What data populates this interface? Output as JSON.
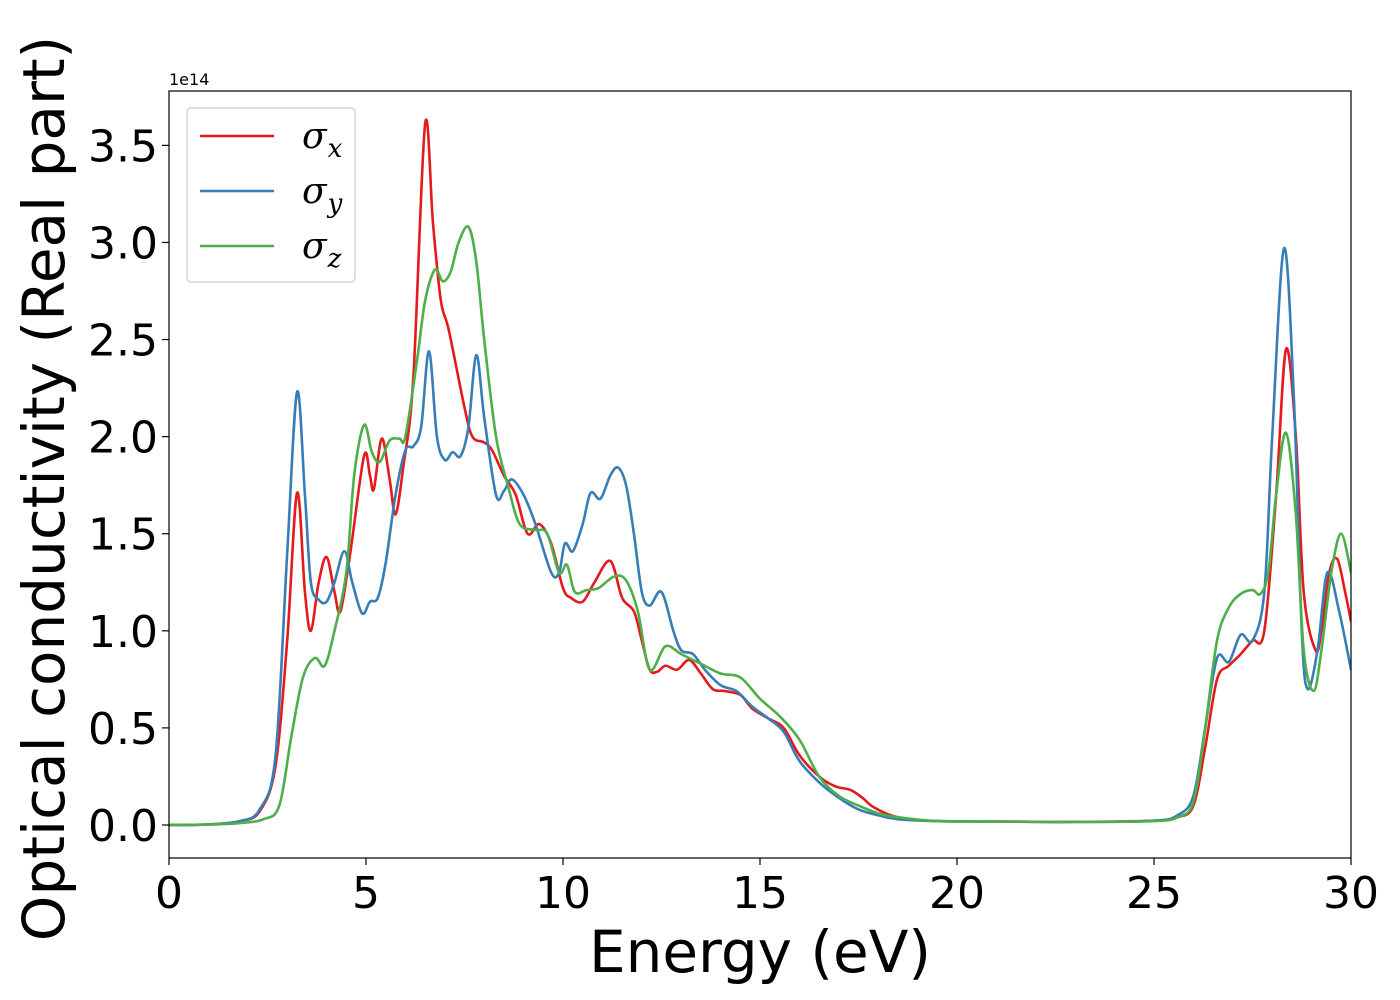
{
  "chart_data": {
    "type": "line",
    "xlabel": "Energy (eV)",
    "ylabel": "Optical conductivity (Real part)",
    "offset_text": "1e14",
    "scale": 100000000000000.0,
    "xlim": [
      0,
      30
    ],
    "ylim": [
      -0.17,
      3.78
    ],
    "xticks": [
      0,
      5,
      10,
      15,
      20,
      25,
      30
    ],
    "xtick_labels": [
      "0",
      "5",
      "10",
      "15",
      "20",
      "25",
      "30"
    ],
    "yticks": [
      0.0,
      0.5,
      1.0,
      1.5,
      2.0,
      2.5,
      3.0,
      3.5
    ],
    "ytick_labels": [
      "0.0",
      "0.5",
      "1.0",
      "1.5",
      "2.0",
      "2.5",
      "3.0",
      "3.5"
    ],
    "grid": false,
    "legend_position": "top-left",
    "series": [
      {
        "name": "σx",
        "symbol": "σ",
        "subscript": "x",
        "color": "#e41a1c",
        "points": [
          [
            0,
            0
          ],
          [
            1,
            0.003
          ],
          [
            1.8,
            0.02
          ],
          [
            2.3,
            0.07
          ],
          [
            2.7,
            0.3
          ],
          [
            3.0,
            0.95
          ],
          [
            3.25,
            1.71
          ],
          [
            3.45,
            1.2
          ],
          [
            3.6,
            1.0
          ],
          [
            3.8,
            1.25
          ],
          [
            4.0,
            1.38
          ],
          [
            4.2,
            1.2
          ],
          [
            4.35,
            1.1
          ],
          [
            4.6,
            1.4
          ],
          [
            4.95,
            1.9
          ],
          [
            5.1,
            1.8
          ],
          [
            5.2,
            1.73
          ],
          [
            5.4,
            1.99
          ],
          [
            5.6,
            1.78
          ],
          [
            5.75,
            1.6
          ],
          [
            5.95,
            1.85
          ],
          [
            6.2,
            2.3
          ],
          [
            6.5,
            3.61
          ],
          [
            6.7,
            3.1
          ],
          [
            6.9,
            2.7
          ],
          [
            7.1,
            2.55
          ],
          [
            7.5,
            2.15
          ],
          [
            7.7,
            2.0
          ],
          [
            8.0,
            1.97
          ],
          [
            8.2,
            1.93
          ],
          [
            8.5,
            1.8
          ],
          [
            8.8,
            1.7
          ],
          [
            9.1,
            1.5
          ],
          [
            9.4,
            1.55
          ],
          [
            9.7,
            1.45
          ],
          [
            10.0,
            1.22
          ],
          [
            10.2,
            1.17
          ],
          [
            10.5,
            1.15
          ],
          [
            10.8,
            1.25
          ],
          [
            11.2,
            1.36
          ],
          [
            11.5,
            1.17
          ],
          [
            11.8,
            1.1
          ],
          [
            12.0,
            0.95
          ],
          [
            12.2,
            0.8
          ],
          [
            12.4,
            0.79
          ],
          [
            12.6,
            0.82
          ],
          [
            12.9,
            0.8
          ],
          [
            13.2,
            0.85
          ],
          [
            13.5,
            0.78
          ],
          [
            13.8,
            0.7
          ],
          [
            14.1,
            0.69
          ],
          [
            14.5,
            0.67
          ],
          [
            14.8,
            0.6
          ],
          [
            15.2,
            0.55
          ],
          [
            15.6,
            0.5
          ],
          [
            16.0,
            0.36
          ],
          [
            16.5,
            0.25
          ],
          [
            16.9,
            0.2
          ],
          [
            17.3,
            0.18
          ],
          [
            17.6,
            0.14
          ],
          [
            17.9,
            0.09
          ],
          [
            18.5,
            0.04
          ],
          [
            19.5,
            0.02
          ],
          [
            21,
            0.018
          ],
          [
            23,
            0.016
          ],
          [
            25,
            0.022
          ],
          [
            25.6,
            0.04
          ],
          [
            26.0,
            0.1
          ],
          [
            26.3,
            0.4
          ],
          [
            26.6,
            0.75
          ],
          [
            26.9,
            0.82
          ],
          [
            27.2,
            0.88
          ],
          [
            27.5,
            0.95
          ],
          [
            27.8,
            1.0
          ],
          [
            28.1,
            1.7
          ],
          [
            28.35,
            2.45
          ],
          [
            28.6,
            2.0
          ],
          [
            28.8,
            1.2
          ],
          [
            29.1,
            0.9
          ],
          [
            29.25,
            1.0
          ],
          [
            29.45,
            1.3
          ],
          [
            29.65,
            1.37
          ],
          [
            29.85,
            1.2
          ],
          [
            30.0,
            1.05
          ]
        ]
      },
      {
        "name": "σy",
        "symbol": "σ",
        "subscript": "y",
        "color": "#377eb8",
        "points": [
          [
            0,
            0
          ],
          [
            1,
            0.003
          ],
          [
            1.8,
            0.02
          ],
          [
            2.3,
            0.08
          ],
          [
            2.7,
            0.35
          ],
          [
            3.0,
            1.4
          ],
          [
            3.25,
            2.23
          ],
          [
            3.45,
            1.7
          ],
          [
            3.6,
            1.25
          ],
          [
            3.8,
            1.16
          ],
          [
            4.0,
            1.15
          ],
          [
            4.2,
            1.25
          ],
          [
            4.45,
            1.41
          ],
          [
            4.65,
            1.25
          ],
          [
            4.9,
            1.09
          ],
          [
            5.1,
            1.15
          ],
          [
            5.3,
            1.17
          ],
          [
            5.5,
            1.35
          ],
          [
            5.75,
            1.7
          ],
          [
            6.0,
            1.93
          ],
          [
            6.2,
            1.95
          ],
          [
            6.4,
            2.05
          ],
          [
            6.6,
            2.44
          ],
          [
            6.8,
            2.0
          ],
          [
            7.0,
            1.88
          ],
          [
            7.2,
            1.92
          ],
          [
            7.4,
            1.9
          ],
          [
            7.6,
            2.05
          ],
          [
            7.8,
            2.42
          ],
          [
            8.0,
            2.1
          ],
          [
            8.3,
            1.7
          ],
          [
            8.5,
            1.72
          ],
          [
            8.7,
            1.78
          ],
          [
            9.0,
            1.7
          ],
          [
            9.3,
            1.55
          ],
          [
            9.7,
            1.3
          ],
          [
            9.9,
            1.3
          ],
          [
            10.05,
            1.45
          ],
          [
            10.25,
            1.41
          ],
          [
            10.5,
            1.55
          ],
          [
            10.7,
            1.71
          ],
          [
            10.95,
            1.68
          ],
          [
            11.2,
            1.8
          ],
          [
            11.4,
            1.84
          ],
          [
            11.6,
            1.75
          ],
          [
            11.8,
            1.5
          ],
          [
            12.0,
            1.2
          ],
          [
            12.2,
            1.13
          ],
          [
            12.5,
            1.2
          ],
          [
            12.8,
            1.0
          ],
          [
            13.0,
            0.9
          ],
          [
            13.3,
            0.88
          ],
          [
            13.6,
            0.8
          ],
          [
            14.0,
            0.72
          ],
          [
            14.4,
            0.69
          ],
          [
            14.8,
            0.61
          ],
          [
            15.2,
            0.55
          ],
          [
            15.6,
            0.48
          ],
          [
            16.0,
            0.33
          ],
          [
            16.5,
            0.22
          ],
          [
            17.0,
            0.14
          ],
          [
            17.5,
            0.08
          ],
          [
            18.0,
            0.05
          ],
          [
            18.5,
            0.03
          ],
          [
            19.5,
            0.02
          ],
          [
            21,
            0.018
          ],
          [
            23,
            0.016
          ],
          [
            25,
            0.022
          ],
          [
            25.6,
            0.05
          ],
          [
            26.0,
            0.15
          ],
          [
            26.3,
            0.5
          ],
          [
            26.6,
            0.86
          ],
          [
            26.9,
            0.84
          ],
          [
            27.2,
            0.98
          ],
          [
            27.5,
            0.95
          ],
          [
            27.8,
            1.2
          ],
          [
            28.0,
            2.0
          ],
          [
            28.3,
            2.97
          ],
          [
            28.55,
            2.2
          ],
          [
            28.75,
            1.0
          ],
          [
            28.9,
            0.7
          ],
          [
            29.15,
            0.9
          ],
          [
            29.4,
            1.3
          ],
          [
            29.7,
            1.1
          ],
          [
            30.0,
            0.8
          ]
        ]
      },
      {
        "name": "σz",
        "symbol": "σ",
        "subscript": "z",
        "color": "#4daf4a",
        "points": [
          [
            0,
            0
          ],
          [
            1,
            0.002
          ],
          [
            1.8,
            0.01
          ],
          [
            2.4,
            0.03
          ],
          [
            2.8,
            0.1
          ],
          [
            3.1,
            0.45
          ],
          [
            3.4,
            0.76
          ],
          [
            3.7,
            0.86
          ],
          [
            3.95,
            0.82
          ],
          [
            4.2,
            1.0
          ],
          [
            4.5,
            1.3
          ],
          [
            4.7,
            1.8
          ],
          [
            4.95,
            2.06
          ],
          [
            5.15,
            1.92
          ],
          [
            5.35,
            1.87
          ],
          [
            5.6,
            1.98
          ],
          [
            5.85,
            1.99
          ],
          [
            6.0,
            2.0
          ],
          [
            6.3,
            2.4
          ],
          [
            6.5,
            2.7
          ],
          [
            6.75,
            2.86
          ],
          [
            6.95,
            2.8
          ],
          [
            7.15,
            2.85
          ],
          [
            7.35,
            3.0
          ],
          [
            7.6,
            3.08
          ],
          [
            7.8,
            2.9
          ],
          [
            8.0,
            2.5
          ],
          [
            8.3,
            2.0
          ],
          [
            8.6,
            1.75
          ],
          [
            8.9,
            1.55
          ],
          [
            9.3,
            1.52
          ],
          [
            9.6,
            1.5
          ],
          [
            9.9,
            1.3
          ],
          [
            10.1,
            1.34
          ],
          [
            10.3,
            1.2
          ],
          [
            10.6,
            1.21
          ],
          [
            10.9,
            1.22
          ],
          [
            11.3,
            1.28
          ],
          [
            11.6,
            1.26
          ],
          [
            11.9,
            1.1
          ],
          [
            12.2,
            0.8
          ],
          [
            12.6,
            0.92
          ],
          [
            13.0,
            0.88
          ],
          [
            13.5,
            0.83
          ],
          [
            14.0,
            0.78
          ],
          [
            14.5,
            0.76
          ],
          [
            15.0,
            0.65
          ],
          [
            15.5,
            0.56
          ],
          [
            16.0,
            0.44
          ],
          [
            16.5,
            0.25
          ],
          [
            17.0,
            0.15
          ],
          [
            17.5,
            0.1
          ],
          [
            18.0,
            0.06
          ],
          [
            18.5,
            0.04
          ],
          [
            19.5,
            0.02
          ],
          [
            21,
            0.018
          ],
          [
            23,
            0.016
          ],
          [
            25,
            0.02
          ],
          [
            25.6,
            0.04
          ],
          [
            26.0,
            0.12
          ],
          [
            26.3,
            0.5
          ],
          [
            26.6,
            0.95
          ],
          [
            26.9,
            1.12
          ],
          [
            27.2,
            1.19
          ],
          [
            27.5,
            1.21
          ],
          [
            27.7,
            1.19
          ],
          [
            27.9,
            1.3
          ],
          [
            28.1,
            1.7
          ],
          [
            28.35,
            2.02
          ],
          [
            28.6,
            1.6
          ],
          [
            28.8,
            0.9
          ],
          [
            29.05,
            0.69
          ],
          [
            29.25,
            0.9
          ],
          [
            29.5,
            1.3
          ],
          [
            29.75,
            1.5
          ],
          [
            30.0,
            1.3
          ]
        ]
      }
    ]
  }
}
